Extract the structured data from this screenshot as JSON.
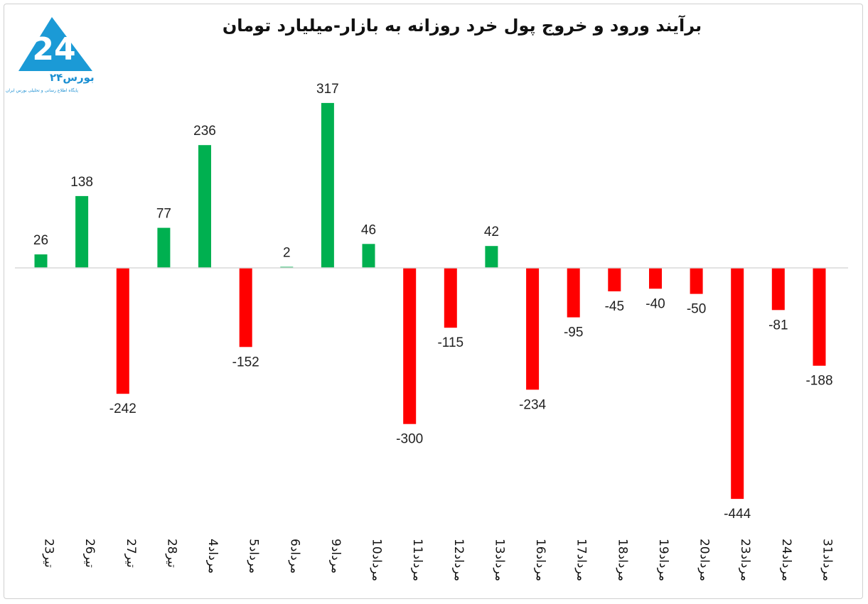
{
  "title": "برآیند ورود و خروج پول خرد روزانه به بازار-میلیارد تومان",
  "logo": {
    "name": "بورس۲۴",
    "subtitle": "پایگاه اطلاع رسانی و تحلیلی بورس ایران",
    "mark_text": "24"
  },
  "colors": {
    "positive": "#00b050",
    "negative": "#ff0000",
    "axis": "#d9d9d9"
  },
  "chart_data": {
    "type": "bar",
    "title": "برآیند ورود و خروج پول خرد روزانه به بازار-میلیارد تومان",
    "xlabel": "",
    "ylabel": "",
    "categories": [
      "23تیر",
      "26تیر",
      "27تیر",
      "28تیر",
      "4مرداد",
      "5مرداد",
      "6مرداد",
      "9مرداد",
      "10مرداد",
      "11مرداد",
      "12مرداد",
      "13مرداد",
      "16مرداد",
      "17مرداد",
      "18مرداد",
      "19مرداد",
      "20مرداد",
      "23مرداد",
      "24مرداد",
      "31مرداد"
    ],
    "values": [
      26,
      138,
      -242,
      77,
      236,
      -152,
      2,
      317,
      46,
      -300,
      -115,
      42,
      -234,
      -95,
      -45,
      -40,
      -50,
      -444,
      -81,
      -188
    ],
    "ylim": [
      -444,
      317
    ],
    "grid": false,
    "legend": "none"
  }
}
